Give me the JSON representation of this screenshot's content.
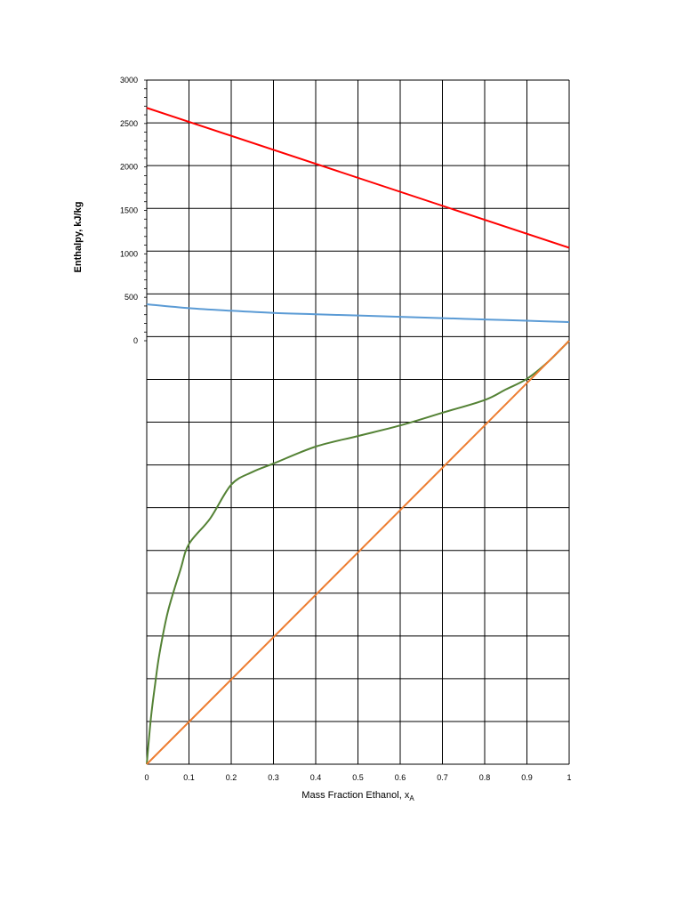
{
  "chart_data": {
    "type": "line",
    "xlabel_main": "Mass Fraction Ethanol, x",
    "xlabel_sub": "A",
    "ylabel": "Enthalpy, kJ/kg",
    "xlim": [
      0,
      1
    ],
    "ylim_enthalpy": [
      0,
      3000
    ],
    "grid": true,
    "x_tick_labels": [
      "0",
      "0.1",
      "0.2",
      "0.3",
      "0.4",
      "0.5",
      "0.6",
      "0.7",
      "0.8",
      "0.9",
      "1"
    ],
    "y_tick_labels": [
      "0",
      "500",
      "1000",
      "1500",
      "2000",
      "2500",
      "3000"
    ],
    "series": [
      {
        "color": "#ff0000",
        "x": [
          0,
          1
        ],
        "y": [
          2680,
          1070
        ]
      },
      {
        "color": "#5b9bd5",
        "x": [
          0,
          0.1,
          0.2,
          0.3,
          0.4,
          0.5,
          0.6,
          0.7,
          0.8,
          0.9,
          1.0
        ],
        "y": [
          420,
          375,
          345,
          320,
          305,
          290,
          275,
          260,
          245,
          230,
          215
        ]
      },
      {
        "color": "#548235",
        "x": [
          0,
          0.01,
          0.02,
          0.03,
          0.05,
          0.08,
          0.1,
          0.15,
          0.2,
          0.25,
          0.3,
          0.4,
          0.5,
          0.6,
          0.7,
          0.8,
          0.85,
          0.9,
          0.95,
          1.0
        ],
        "y": [
          0,
          0.11,
          0.19,
          0.26,
          0.36,
          0.46,
          0.52,
          0.58,
          0.66,
          0.69,
          0.71,
          0.75,
          0.775,
          0.8,
          0.83,
          0.86,
          0.885,
          0.91,
          0.95,
          1.0
        ]
      },
      {
        "color": "#ed7d31",
        "x": [
          0,
          1
        ],
        "y": [
          0,
          1
        ]
      }
    ]
  }
}
